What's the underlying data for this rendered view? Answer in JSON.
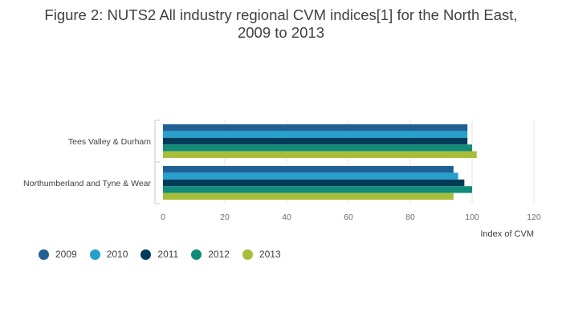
{
  "title": [
    "Figure 2: NUTS2 All industry regional CVM indices[1] for the North East,",
    "2009 to 2013"
  ],
  "chart_data": {
    "type": "bar",
    "orientation": "horizontal",
    "categories": [
      "Tees Valley & Durham",
      "Northumberland and Tyne & Wear"
    ],
    "series": [
      {
        "name": "2009",
        "color": "#206095",
        "values": [
          98.5,
          94
        ]
      },
      {
        "name": "2010",
        "color": "#27a0cc",
        "values": [
          98.5,
          95.5
        ]
      },
      {
        "name": "2011",
        "color": "#003c57",
        "values": [
          98.5,
          97.5
        ]
      },
      {
        "name": "2012",
        "color": "#118c7b",
        "values": [
          100,
          100
        ]
      },
      {
        "name": "2013",
        "color": "#a8bd3a",
        "values": [
          101.5,
          94
        ]
      }
    ],
    "xlabel": "Index of CVM",
    "xlim": [
      0,
      120
    ],
    "xticks": [
      "0",
      "20",
      "40",
      "60",
      "80",
      "100",
      "120"
    ],
    "grid": true,
    "legend_position": "bottom-left"
  }
}
